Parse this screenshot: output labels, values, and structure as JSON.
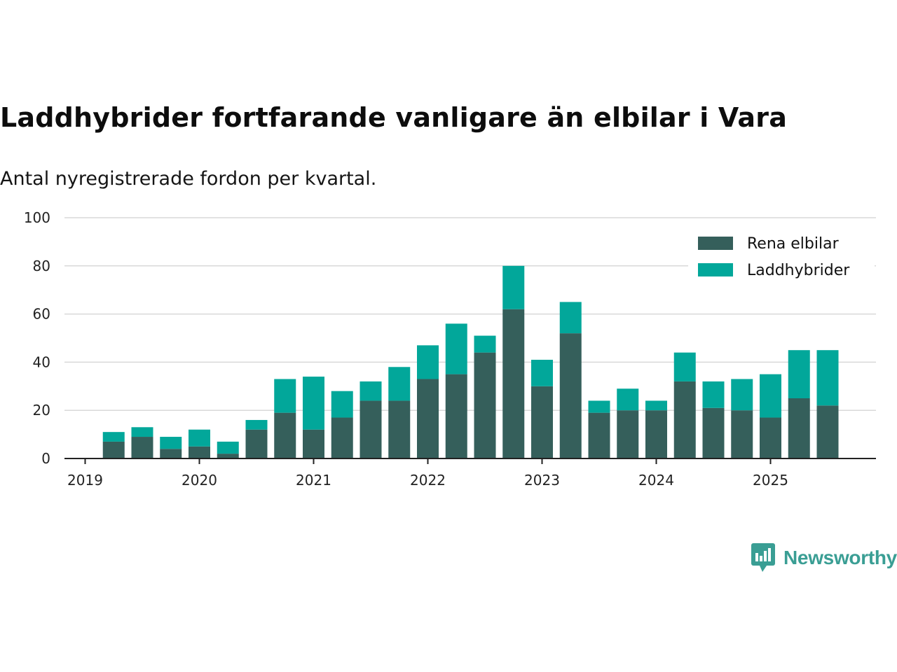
{
  "title": "Laddhybrider fortfarande vanligare än elbilar i Vara",
  "subtitle": "Antal nyregistrerade fordon per kvartal.",
  "brand": {
    "name": "Newsworthy",
    "icon": "newsworthy-logo-icon"
  },
  "colors": {
    "rena": "#355f5b",
    "ladd": "#02a79a",
    "grid": "#d9d9d9",
    "axis": "#222222"
  },
  "chart_data": {
    "type": "bar",
    "stacked": true,
    "title": "Laddhybrider fortfarande vanligare än elbilar i Vara",
    "subtitle": "Antal nyregistrerade fordon per kvartal.",
    "xlabel": "",
    "ylabel": "",
    "ylim": [
      0,
      100
    ],
    "yticks": [
      0,
      20,
      40,
      60,
      80,
      100
    ],
    "xticks": [
      "2019",
      "2020",
      "2021",
      "2022",
      "2023",
      "2024",
      "2025"
    ],
    "grid": true,
    "legend_position": "top-right",
    "categories": [
      "2019 Q2",
      "2019 Q3",
      "2019 Q4",
      "2020 Q1",
      "2020 Q2",
      "2020 Q3",
      "2020 Q4",
      "2021 Q1",
      "2021 Q2",
      "2021 Q3",
      "2021 Q4",
      "2022 Q1",
      "2022 Q2",
      "2022 Q3",
      "2022 Q4",
      "2023 Q1",
      "2023 Q2",
      "2023 Q3",
      "2023 Q4",
      "2024 Q1",
      "2024 Q2",
      "2024 Q3",
      "2024 Q4",
      "2025 Q1",
      "2025 Q2",
      "2025 Q3"
    ],
    "series": [
      {
        "name": "Rena elbilar",
        "values": [
          7,
          9,
          4,
          5,
          2,
          12,
          19,
          12,
          17,
          24,
          24,
          33,
          35,
          44,
          62,
          30,
          52,
          19,
          20,
          20,
          32,
          21,
          20,
          17,
          25,
          22
        ]
      },
      {
        "name": "Laddhybrider",
        "values": [
          4,
          4,
          5,
          7,
          5,
          4,
          14,
          22,
          11,
          8,
          14,
          14,
          21,
          7,
          18,
          11,
          13,
          5,
          9,
          4,
          12,
          11,
          13,
          18,
          20,
          23
        ]
      }
    ]
  }
}
